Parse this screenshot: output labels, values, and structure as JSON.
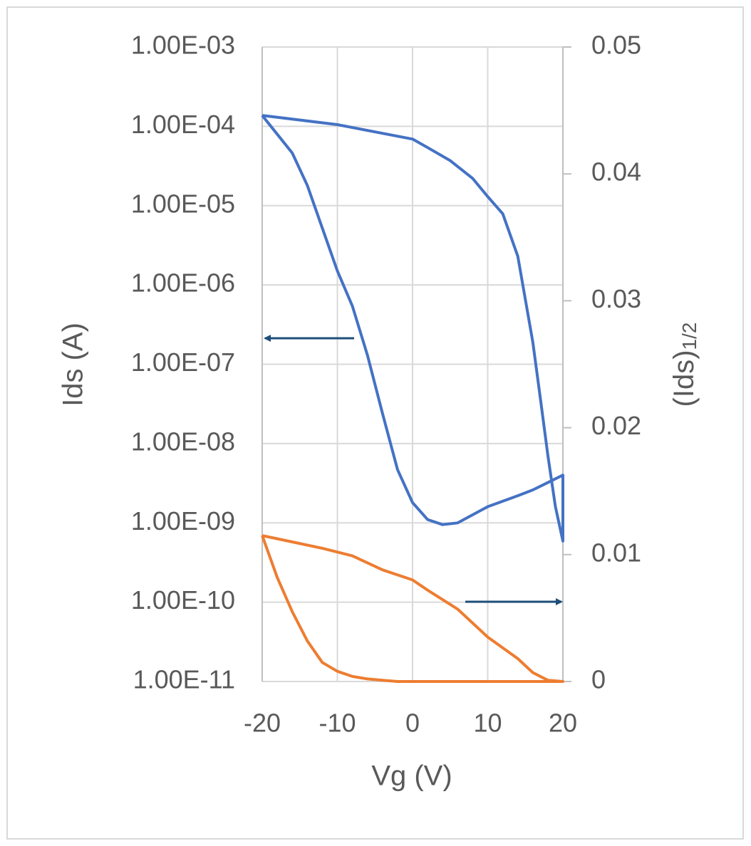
{
  "chart_data": {
    "type": "line",
    "xlabel": "Vg (V)",
    "ylabel": "Ids (A)",
    "y2label": "(Ids)",
    "y2label_subscript": "1/2",
    "xlim": [
      -20,
      20
    ],
    "xticks": [
      -20,
      -10,
      0,
      10,
      20
    ],
    "ylim": [
      1e-11,
      0.001
    ],
    "yscale": "log",
    "yticks": [
      {
        "value": 1e-11,
        "label": "1.00E-11"
      },
      {
        "value": 1e-10,
        "label": "1.00E-10"
      },
      {
        "value": 1e-09,
        "label": "1.00E-09"
      },
      {
        "value": 1e-08,
        "label": "1.00E-08"
      },
      {
        "value": 1e-07,
        "label": "1.00E-07"
      },
      {
        "value": 1e-06,
        "label": "1.00E-06"
      },
      {
        "value": 1e-05,
        "label": "1.00E-05"
      },
      {
        "value": 0.0001,
        "label": "1.00E-04"
      },
      {
        "value": 0.001,
        "label": "1.00E-03"
      }
    ],
    "y2lim": [
      0,
      0.05
    ],
    "y2ticks": [
      0,
      0.01,
      0.02,
      0.03,
      0.04,
      0.05
    ],
    "grid": true,
    "series": [
      {
        "color": "#4472c4",
        "axis": "y",
        "x": [
          -20,
          -16,
          -14,
          -12,
          -10,
          -8,
          -6,
          -4,
          -2,
          0,
          2,
          4,
          6,
          10,
          14,
          16,
          20,
          20,
          19,
          18,
          17,
          16,
          14,
          12,
          10,
          8,
          5,
          2,
          0,
          -5,
          -10,
          -20
        ],
        "values": [
          0.000137,
          4.6e-05,
          1.8e-05,
          5.2e-06,
          1.5e-06,
          5.4e-07,
          1.3e-07,
          2.4e-08,
          4.7e-09,
          1.8e-09,
          1.1e-09,
          9.5e-10,
          1e-09,
          1.6e-09,
          2.2e-09,
          2.6e-09,
          4e-09,
          5.9e-10,
          1.6e-09,
          7.1e-09,
          3.7e-08,
          1.9e-07,
          2.3e-06,
          7.9e-06,
          1.3e-05,
          2.2e-05,
          3.7e-05,
          5.4e-05,
          6.9e-05,
          8.5e-05,
          0.000105,
          0.000137
        ]
      },
      {
        "color": "#ed7d31",
        "axis": "y2",
        "x": [
          -20,
          -18,
          -16,
          -14,
          -12,
          -10,
          -8,
          -6,
          -4,
          -2,
          0,
          4,
          8,
          12,
          16,
          18,
          20,
          20,
          18,
          16,
          14,
          10,
          6,
          2,
          0,
          -4,
          -8,
          -12,
          -16,
          -20
        ],
        "values": [
          0.0115,
          0.0082,
          0.0055,
          0.0032,
          0.0015,
          0.0008,
          0.0004,
          0.0002,
          0.0001,
          0,
          0,
          0,
          0,
          0,
          0,
          0,
          0,
          0,
          0.0001,
          0.0007,
          0.0018,
          0.0035,
          0.0057,
          0.0072,
          0.008,
          0.0088,
          0.0099,
          0.0105,
          0.011,
          0.0115
        ]
      }
    ]
  }
}
